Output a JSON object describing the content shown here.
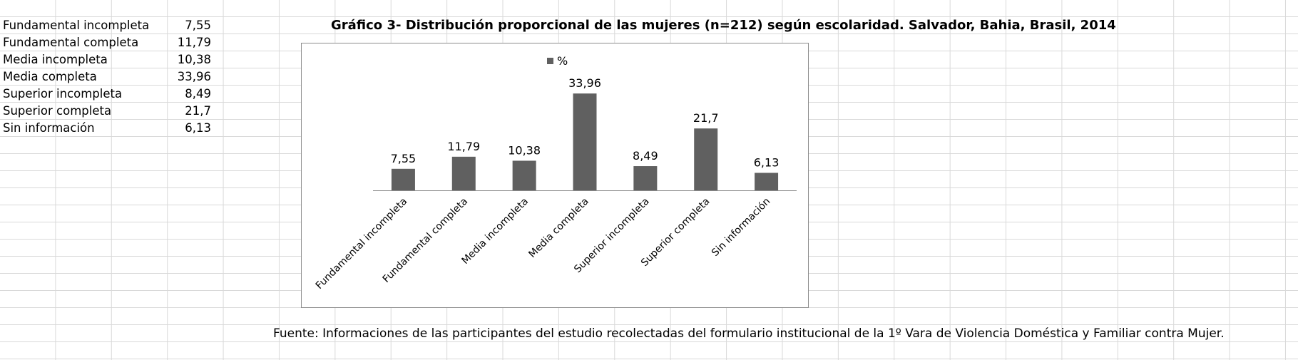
{
  "table": {
    "rows": [
      {
        "label": "Fundamental incompleta",
        "value": "7,55"
      },
      {
        "label": "Fundamental completa",
        "value": "11,79"
      },
      {
        "label": "Media incompleta",
        "value": "10,38"
      },
      {
        "label": "Media completa",
        "value": "33,96"
      },
      {
        "label": "Superior incompleta",
        "value": "8,49"
      },
      {
        "label": "Superior completa",
        "value": "21,7"
      },
      {
        "label": "Sin información",
        "value": "6,13"
      }
    ]
  },
  "chart_data": {
    "type": "bar",
    "title": "Gráfico 3- Distribución proporcional de las mujeres (n=212) según escolaridad. Salvador, Bahia, Brasil, 2014",
    "categories": [
      "Fundamental incompleta",
      "Fundamental completa",
      "Media incompleta",
      "Media completa",
      "Superior incompleta",
      "Superior completa",
      "Sin información"
    ],
    "series": [
      {
        "name": "%",
        "values": [
          7.55,
          11.79,
          10.38,
          33.96,
          8.49,
          21.7,
          6.13
        ]
      }
    ],
    "data_labels": [
      "7,55",
      "11,79",
      "10,38",
      "33,96",
      "8,49",
      "21,7",
      "6,13"
    ],
    "legend": "top-center",
    "ylim": [
      0,
      40
    ],
    "grid": false,
    "colors": {
      "bar": "#606060",
      "axis": "#8c8c8c"
    }
  },
  "source": "Fuente: Informaciones de las participantes del estudio recolectadas del formulario institucional de la 1º Vara de Violencia Doméstica y Familiar contra Mujer."
}
